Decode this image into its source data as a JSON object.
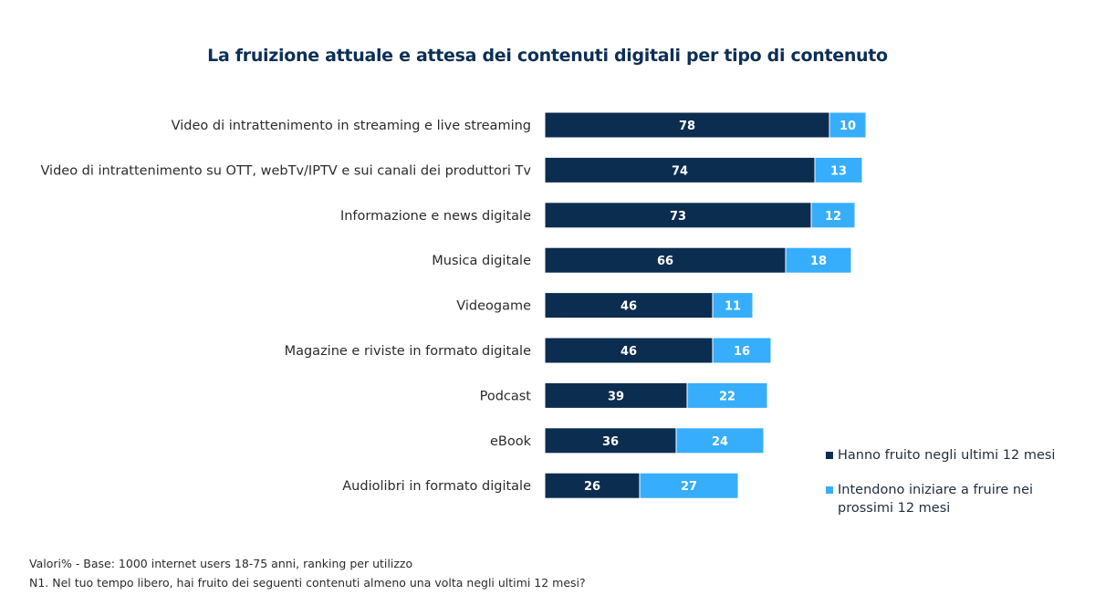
{
  "chart_data": {
    "type": "bar",
    "orientation": "horizontal",
    "stacked": true,
    "title": "La fruizione attuale e attesa dei contenuti digitali per tipo di contenuto",
    "xlabel": "",
    "ylabel": "",
    "xlim": [
      0,
      100
    ],
    "grid": false,
    "legend_position": "bottom-right",
    "categories": [
      "Video di intrattenimento  in streaming e live streaming",
      "Video di intrattenimento su OTT, webTv/IPTV e sui canali dei produttori Tv",
      "Informazione e news digitale",
      "Musica digitale",
      "Videogame",
      "Magazine e riviste in formato digitale",
      "Podcast",
      "eBook",
      "Audiolibri in formato digitale"
    ],
    "series": [
      {
        "name": "Hanno fruito negli ultimi 12 mesi",
        "color": "#0b2d50",
        "values": [
          78,
          74,
          73,
          66,
          46,
          46,
          39,
          36,
          26
        ]
      },
      {
        "name": "Intendono iniziare a fruire nei prossimi 12 mesi",
        "color": "#36aefc",
        "values": [
          10,
          13,
          12,
          18,
          11,
          16,
          22,
          24,
          27
        ]
      }
    ]
  },
  "notes": {
    "line1": "Valori% - Base: 1000 internet users 18-75 anni, ranking per utilizzo",
    "line2": "N1. Nel tuo tempo libero, hai fruito dei seguenti contenuti almeno una volta negli ultimi 12 mesi?"
  }
}
